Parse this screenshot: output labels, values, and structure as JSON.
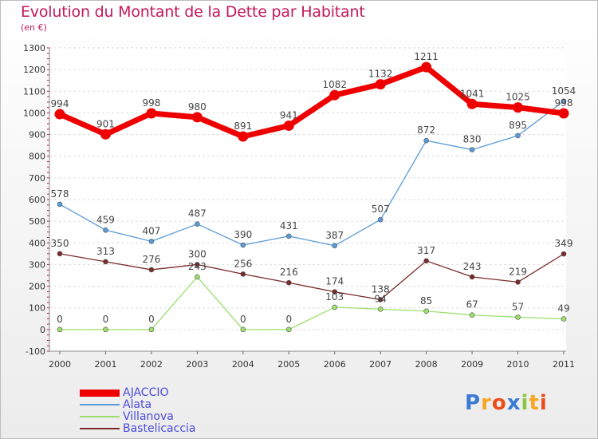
{
  "header": {
    "title": "Evolution du Montant de la Dette par Habitant",
    "subtitle": "(en €)"
  },
  "chart_data": {
    "type": "line",
    "x": [
      "2000",
      "2001",
      "2002",
      "2003",
      "2004",
      "2005",
      "2006",
      "2007",
      "2008",
      "2009",
      "2010",
      "2011"
    ],
    "ylim": [
      -100,
      1300
    ],
    "yticks": [
      -100,
      0,
      100,
      200,
      300,
      400,
      500,
      600,
      700,
      800,
      900,
      1000,
      1100,
      1200,
      1300
    ],
    "grid": "horizontal",
    "legend_position": "bottom-left",
    "series": [
      {
        "name": "AJACCIO",
        "color": "#ee0000",
        "values": [
          994,
          901,
          998,
          980,
          891,
          941,
          1082,
          1132,
          1211,
          1041,
          1025,
          998
        ]
      },
      {
        "name": "Alata",
        "color": "#5b9bd5",
        "values": [
          578,
          459,
          407,
          487,
          390,
          431,
          387,
          507,
          872,
          830,
          895,
          1054
        ]
      },
      {
        "name": "Villanova",
        "color": "#9dde6e",
        "values": [
          0,
          0,
          0,
          243,
          0,
          0,
          103,
          94,
          85,
          67,
          57,
          49
        ]
      },
      {
        "name": "Bastelicaccia",
        "color": "#7a2a2a",
        "values": [
          350,
          313,
          276,
          300,
          256,
          216,
          174,
          138,
          317,
          243,
          219,
          349
        ]
      }
    ]
  },
  "legend": {
    "items": [
      {
        "label": "AJACCIO",
        "color": "#ee0000"
      },
      {
        "label": "Alata",
        "color": "#5b9bd5"
      },
      {
        "label": "Villanova",
        "color": "#9dde6e"
      },
      {
        "label": "Bastelicaccia",
        "color": "#7a2a2a"
      }
    ]
  },
  "logo": {
    "text": "Proxiti",
    "letter_colors": [
      "#3a7bd5",
      "#f5a623",
      "#e94e1b",
      "#3a7bd5",
      "#8cc63f",
      "#f5a623",
      "#e94e1b"
    ]
  }
}
